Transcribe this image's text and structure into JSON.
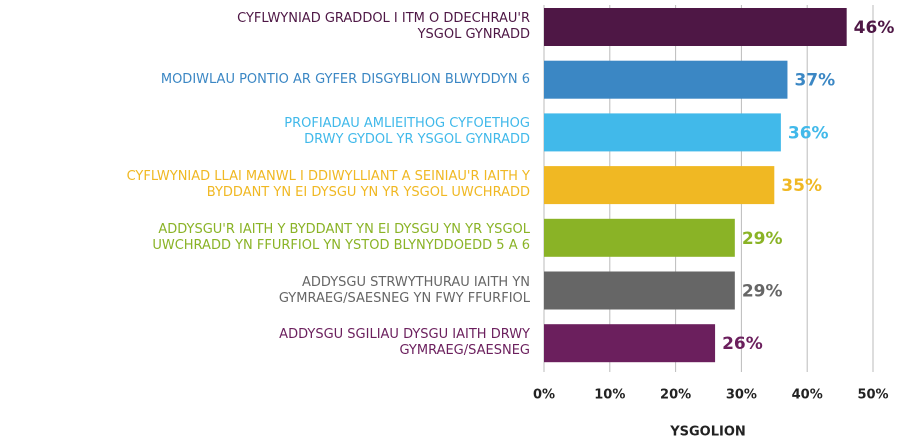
{
  "chart_data": {
    "type": "barh",
    "categories": [
      "CYFLWYNIAD GRADDOL I ITM O DDECHRAU'R\nYSGOL GYNRADD",
      "MODIWLAU PONTIO AR GYFER DISGYBLION BLWYDDYN 6",
      "PROFIADAU AMLIEITHOG CYFOETHOG\nDRWY GYDOL YR YSGOL GYNRADD",
      "CYFLWYNIAD LLAI MANWL I DDIWYLLIANT A SEINIAU'R IAITH Y\nBYDDANT YN EI DYSGU YN YR YSGOL UWCHRADD",
      "ADDYSGU'R IAITH Y BYDDANT YN EI DYSGU YN YR YSGOL\nUWCHRADD YN FFURFIOL YN YSTOD BLYNYDDOEDD 5 A 6",
      "ADDYSGU STRWYTHURAU IAITH YN\nGYMRAEG/SAESNEG YN FWY FFURFIOL",
      "ADDYSGU SGILIAU DYSGU IAITH DRWY\nGYMRAEG/SAESNEG"
    ],
    "values": [
      46,
      37,
      36,
      35,
      29,
      29,
      26
    ],
    "value_labels": [
      "46%",
      "37%",
      "36%",
      "35%",
      "29%",
      "29%",
      "26%"
    ],
    "colors": [
      "#4e1745",
      "#3b87c4",
      "#41b9ea",
      "#f0b823",
      "#8ab326",
      "#666666",
      "#6b1f5d"
    ],
    "xlabel": "YSGOLION",
    "xlim": [
      0,
      50
    ],
    "xticks": [
      {
        "value": 0,
        "label": "0%"
      },
      {
        "value": 10,
        "label": "10%"
      },
      {
        "value": 20,
        "label": "20%"
      },
      {
        "value": 30,
        "label": "30%"
      },
      {
        "value": 40,
        "label": "40%"
      },
      {
        "value": 50,
        "label": "50%"
      }
    ],
    "grid": true
  }
}
